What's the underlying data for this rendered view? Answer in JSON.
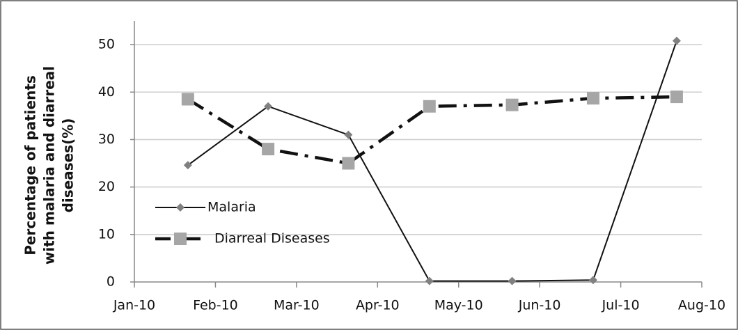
{
  "chart_data": {
    "type": "line",
    "ylabel": [
      "Percentage of patients",
      "with malaria and diarreal",
      "diseases(%)"
    ],
    "x": [
      0.66,
      1.65,
      2.64,
      3.64,
      4.66,
      5.66,
      6.69
    ],
    "xlim": [
      0,
      7
    ],
    "xticks": [
      {
        "value": 0,
        "label": "Jan-10"
      },
      {
        "value": 1,
        "label": "Feb-10"
      },
      {
        "value": 2,
        "label": "Mar-10"
      },
      {
        "value": 3,
        "label": "Apr-10"
      },
      {
        "value": 4,
        "label": "May-10"
      },
      {
        "value": 5,
        "label": "Jun-10"
      },
      {
        "value": 6,
        "label": "Jul-10"
      },
      {
        "value": 7,
        "label": "Aug-10"
      }
    ],
    "ylim": [
      0,
      55
    ],
    "yticks": [
      0,
      10,
      20,
      30,
      40,
      50
    ],
    "grid": true,
    "legend": "left",
    "series": [
      {
        "name": "Malaria",
        "color": "#111111",
        "marker_color": "#808080",
        "marker": "diamond",
        "dash": "solid",
        "values": [
          24.6,
          37,
          31,
          0.2,
          0.2,
          0.4,
          50.8
        ]
      },
      {
        "name": "Diarreal Diseases",
        "color": "#111111",
        "marker_color": "#a6a6a6",
        "marker": "square",
        "dash": "dashdot",
        "values": [
          38.5,
          28,
          25,
          37,
          37.3,
          38.7,
          39
        ]
      }
    ]
  }
}
